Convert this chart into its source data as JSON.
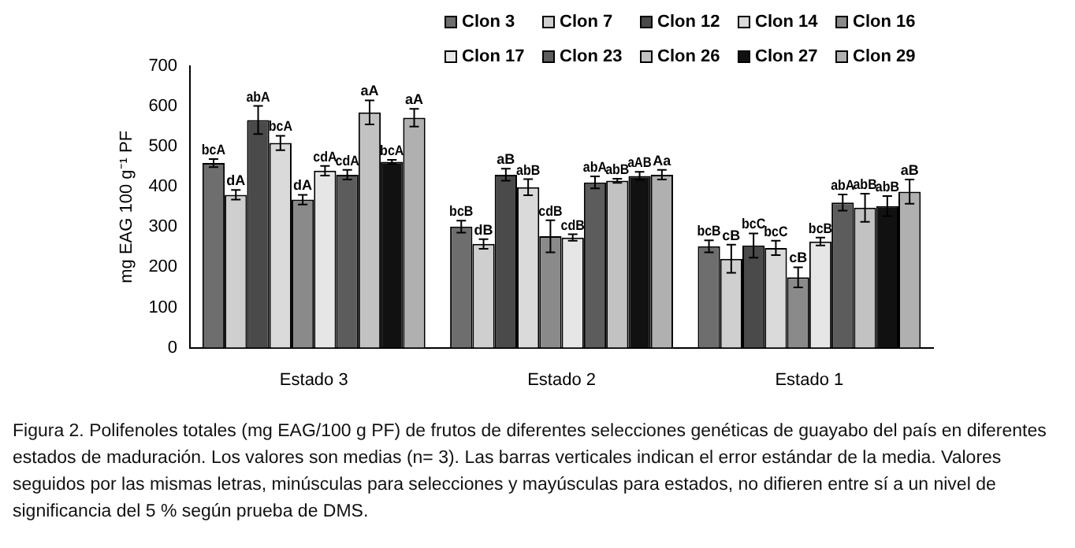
{
  "chart_data": {
    "type": "bar",
    "categories": [
      "Estado 3",
      "Estado 2",
      "Estado 1"
    ],
    "ylabel": "mg EAG 100 g⁻¹ PF",
    "ylim": [
      0,
      700
    ],
    "yticks": [
      0,
      100,
      200,
      300,
      400,
      500,
      600,
      700
    ],
    "grid": false,
    "legend": "top right",
    "series": [
      {
        "name": "Clon 3",
        "color": "#6e6e6e",
        "values": [
          459,
          301,
          252
        ],
        "errors": [
          10,
          15,
          15
        ],
        "value_labels": [
          "bcA",
          "bcB",
          "bcB"
        ]
      },
      {
        "name": "Clon 7",
        "color": "#cfcfcf",
        "values": [
          380,
          258,
          221
        ],
        "errors": [
          12,
          12,
          35
        ],
        "value_labels": [
          "dA",
          "dB",
          "cB"
        ]
      },
      {
        "name": "Clon 12",
        "color": "#4a4a4a",
        "values": [
          566,
          430,
          254
        ],
        "errors": [
          35,
          15,
          30
        ],
        "value_labels": [
          "abA",
          "aB",
          "bcC"
        ]
      },
      {
        "name": "Clon 14",
        "color": "#dadada",
        "values": [
          509,
          399,
          248
        ],
        "errors": [
          18,
          20,
          18
        ],
        "value_labels": [
          "bcA",
          "abB",
          "bcC"
        ]
      },
      {
        "name": "Clon 16",
        "color": "#8a8a8a",
        "values": [
          368,
          277,
          175
        ],
        "errors": [
          12,
          40,
          25
        ],
        "value_labels": [
          "dA",
          "cdB",
          "cB"
        ]
      },
      {
        "name": "Clon 17",
        "color": "#e6e6e6",
        "values": [
          440,
          274,
          264
        ],
        "errors": [
          12,
          8,
          10
        ],
        "value_labels": [
          "cdA",
          "cdB",
          "bcB"
        ]
      },
      {
        "name": "Clon 23",
        "color": "#5c5c5c",
        "values": [
          430,
          411,
          361
        ],
        "errors": [
          12,
          15,
          20
        ],
        "value_labels": [
          "cdA",
          "abA",
          "abA"
        ]
      },
      {
        "name": "Clon 26",
        "color": "#c2c2c2",
        "values": [
          585,
          415,
          348
        ],
        "errors": [
          30,
          5,
          35
        ],
        "value_labels": [
          "aA",
          "abB",
          "abB"
        ]
      },
      {
        "name": "Clon 27",
        "color": "#111111",
        "values": [
          462,
          427,
          352
        ],
        "errors": [
          5,
          10,
          25
        ],
        "value_labels": [
          "bcA",
          "aAB",
          "abB"
        ]
      },
      {
        "name": "Clon 29",
        "color": "#b0b0b0",
        "values": [
          572,
          430,
          388
        ],
        "errors": [
          22,
          12,
          30
        ],
        "value_labels": [
          "aA",
          "Aa",
          "aB"
        ]
      }
    ],
    "annotations": [
      "Figura 2. Polifenoles totales (mg EAG/100 g PF) de frutos de diferentes selecciones genéticas de guayabo del país en diferentes estados de maduración. Los valores son medias (n= 3). Las barras verticales indican el error estándar de la media. Valores seguidos por las mismas letras, minúsculas para selecciones y mayúsculas para estados, no difieren entre sí a un nivel de significancia del 5 % según prueba de DMS."
    ]
  }
}
